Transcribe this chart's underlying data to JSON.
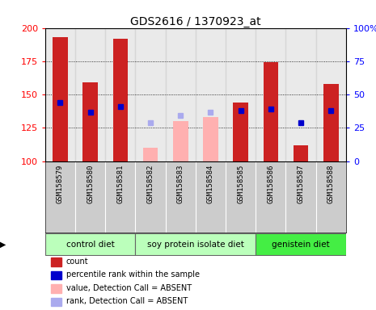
{
  "title": "GDS2616 / 1370923_at",
  "samples": [
    "GSM158579",
    "GSM158580",
    "GSM158581",
    "GSM158582",
    "GSM158583",
    "GSM158584",
    "GSM158585",
    "GSM158586",
    "GSM158587",
    "GSM158588"
  ],
  "bar_values": [
    193,
    159,
    192,
    110,
    130,
    133,
    144,
    174,
    112,
    158
  ],
  "bar_colors": [
    "#CC2222",
    "#CC2222",
    "#CC2222",
    "#FFB0B0",
    "#FFB0B0",
    "#FFB0B0",
    "#CC2222",
    "#CC2222",
    "#CC2222",
    "#CC2222"
  ],
  "rank_values": [
    144,
    137,
    141,
    129,
    134,
    137,
    138,
    139,
    129,
    138
  ],
  "rank_colors": [
    "#0000CC",
    "#0000CC",
    "#0000CC",
    "#AAAAEE",
    "#AAAAEE",
    "#AAAAEE",
    "#0000CC",
    "#0000CC",
    "#0000CC",
    "#0000CC"
  ],
  "absent_mask": [
    false,
    false,
    false,
    true,
    true,
    true,
    false,
    false,
    false,
    false
  ],
  "ylim_left": [
    100,
    200
  ],
  "ylim_right": [
    0,
    100
  ],
  "yticks_left": [
    100,
    125,
    150,
    175,
    200
  ],
  "yticks_right": [
    0,
    25,
    50,
    75,
    100
  ],
  "group_boundaries": [
    0,
    3,
    7,
    10
  ],
  "group_names": [
    "control diet",
    "soy protein isolate diet",
    "genistein diet"
  ],
  "group_colors": [
    "#BBFFBB",
    "#BBFFBB",
    "#44EE44"
  ],
  "legend_items": [
    {
      "label": "count",
      "color": "#CC2222"
    },
    {
      "label": "percentile rank within the sample",
      "color": "#0000CC"
    },
    {
      "label": "value, Detection Call = ABSENT",
      "color": "#FFB0B0"
    },
    {
      "label": "rank, Detection Call = ABSENT",
      "color": "#AAAAEE"
    }
  ],
  "bar_width": 0.5
}
